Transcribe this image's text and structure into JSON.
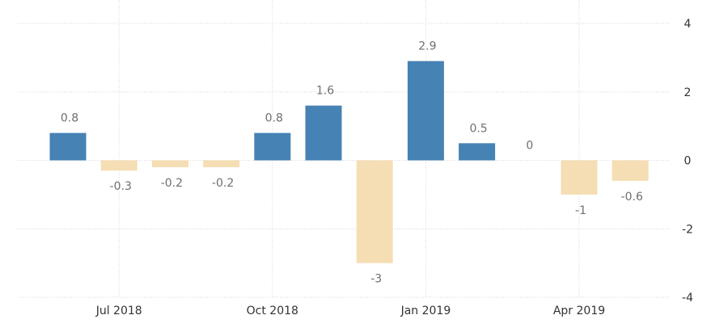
{
  "chart_data": {
    "type": "bar",
    "categories": [
      "Jun 2018",
      "Jul 2018",
      "Aug 2018",
      "Sep 2018",
      "Oct 2018",
      "Nov 2018",
      "Dec 2018",
      "Jan 2019",
      "Feb 2019",
      "Mar 2019",
      "Apr 2019",
      "May 2019"
    ],
    "values": [
      0.8,
      -0.3,
      -0.2,
      -0.2,
      0.8,
      1.6,
      -3,
      2.9,
      0.5,
      0,
      -1,
      -0.6
    ],
    "data_labels": [
      "0.8",
      "-0.3",
      "-0.2",
      "-0.2",
      "0.8",
      "1.6",
      "-3",
      "2.9",
      "0.5",
      "0",
      "-1",
      "-0.6"
    ],
    "x_ticks": [
      {
        "category": "Jul 2018",
        "label": "Jul 2018"
      },
      {
        "category": "Oct 2018",
        "label": "Oct 2018"
      },
      {
        "category": "Jan 2019",
        "label": "Jan 2019"
      },
      {
        "category": "Apr 2019",
        "label": "Apr 2019"
      }
    ],
    "y_ticks": [
      4,
      2,
      0,
      -2,
      -4
    ],
    "ylim": [
      -4,
      4
    ],
    "title": "",
    "xlabel": "",
    "ylabel": "",
    "grid": true,
    "colors": {
      "positive": "#4682b4",
      "negative": "#f5deb3"
    }
  }
}
